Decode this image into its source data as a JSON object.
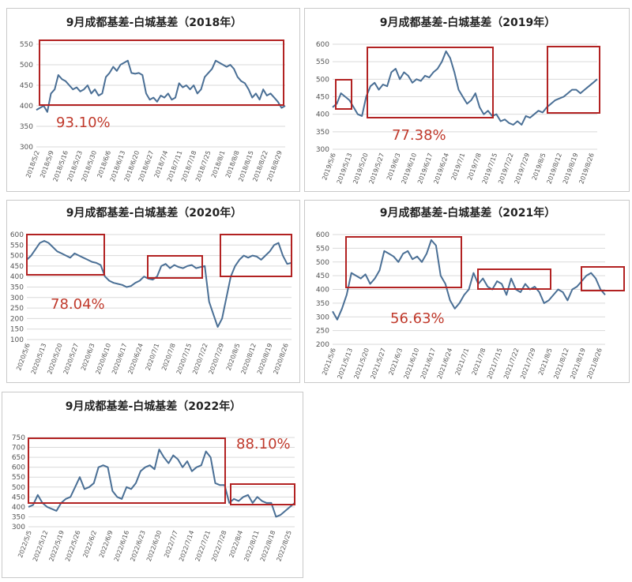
{
  "chart_data": [
    {
      "type": "line",
      "title": "9月成都基差-白城基差（2018年）",
      "ylim": [
        300,
        550
      ],
      "yticks": [
        300,
        350,
        400,
        450,
        500,
        550
      ],
      "x_labels": [
        "2018/5/2",
        "2018/5/9",
        "2018/5/16",
        "2018/5/23",
        "2018/5/30",
        "2018/6/6",
        "2018/6/13",
        "2018/6/20",
        "2018/6/27",
        "2018/7/4",
        "2018/7/11",
        "2018/7/18",
        "2018/7/25",
        "2018/8/1",
        "2018/8/8",
        "2018/8/15",
        "2018/8/22",
        "2018/8/29"
      ],
      "values": [
        390,
        395,
        400,
        385,
        430,
        440,
        475,
        465,
        460,
        450,
        440,
        445,
        435,
        440,
        450,
        430,
        440,
        425,
        430,
        470,
        480,
        495,
        485,
        500,
        505,
        510,
        480,
        478,
        480,
        475,
        430,
        415,
        420,
        410,
        425,
        420,
        430,
        415,
        420,
        455,
        445,
        450,
        440,
        450,
        430,
        440,
        470,
        480,
        490,
        510,
        505,
        500,
        495,
        500,
        490,
        470,
        460,
        455,
        440,
        420,
        430,
        415,
        440,
        425,
        430,
        420,
        410,
        395,
        400
      ],
      "grid": true,
      "annotations": [
        {
          "text": "93.10%"
        }
      ],
      "highlight_ranges": [
        [
          0.04,
          1.0
        ]
      ]
    },
    {
      "type": "line",
      "title": "9月成都基差-白城基差（2019年）",
      "ylim": [
        300,
        600
      ],
      "yticks": [
        300,
        350,
        400,
        450,
        500,
        550,
        600
      ],
      "x_labels": [
        "2019/5/6",
        "2019/5/13",
        "2019/5/20",
        "2019/5/27",
        "2019/6/3",
        "2019/6/10",
        "2019/6/17",
        "2019/6/24",
        "2019/7/1",
        "2019/7/8",
        "2019/7/15",
        "2019/7/22",
        "2019/7/29",
        "2019/8/5",
        "2019/8/12",
        "2019/8/19",
        "2019/8/26"
      ],
      "values": [
        420,
        430,
        460,
        450,
        440,
        420,
        400,
        395,
        450,
        480,
        490,
        470,
        485,
        480,
        520,
        530,
        500,
        520,
        510,
        490,
        500,
        495,
        510,
        505,
        520,
        530,
        550,
        580,
        560,
        520,
        470,
        450,
        430,
        440,
        460,
        420,
        400,
        410,
        395,
        400,
        380,
        385,
        375,
        370,
        380,
        370,
        395,
        390,
        400,
        410,
        405,
        420,
        430,
        440,
        445,
        450,
        460,
        470,
        470,
        460,
        470,
        480,
        490,
        500
      ],
      "grid": true,
      "annotations": [
        {
          "text": "77.38%"
        }
      ],
      "highlight_ranges": [
        [
          0.0,
          0.09
        ],
        [
          0.19,
          0.62
        ],
        [
          0.79,
          1.0
        ]
      ]
    },
    {
      "type": "line",
      "title": "9月成都基差-白城基差（2020年）",
      "ylim": [
        100,
        600
      ],
      "yticks": [
        100,
        150,
        200,
        250,
        300,
        350,
        400,
        450,
        500,
        550,
        600
      ],
      "x_labels": [
        "2020/5/6",
        "2020/5/13",
        "2020/5/20",
        "2020/5/27",
        "2020/6/3",
        "2020/6/10",
        "2020/6/17",
        "2020/6/24",
        "2020/7/1",
        "2020/7/8",
        "2020/7/15",
        "2020/7/22",
        "2020/7/29",
        "2020/8/5",
        "2020/8/12",
        "2020/8/19",
        "2020/8/26"
      ],
      "values": [
        480,
        500,
        530,
        560,
        570,
        560,
        540,
        520,
        510,
        500,
        490,
        510,
        500,
        490,
        480,
        470,
        465,
        455,
        400,
        380,
        370,
        365,
        360,
        350,
        355,
        370,
        380,
        400,
        390,
        385,
        400,
        450,
        460,
        440,
        455,
        445,
        440,
        450,
        455,
        440,
        445,
        450,
        280,
        220,
        160,
        200,
        300,
        400,
        450,
        480,
        500,
        490,
        500,
        495,
        480,
        500,
        520,
        550,
        560,
        500,
        460,
        465
      ],
      "grid": true,
      "annotations": [
        {
          "text": "78.04%"
        }
      ],
      "highlight_ranges": [
        [
          0.0,
          0.31
        ],
        [
          0.48,
          0.69
        ],
        [
          0.78,
          1.0
        ]
      ]
    },
    {
      "type": "line",
      "title": "9月成都基差-白城基差（2021年）",
      "ylim": [
        200,
        600
      ],
      "yticks": [
        200,
        250,
        300,
        350,
        400,
        450,
        500,
        550,
        600
      ],
      "x_labels": [
        "2021/5/6",
        "2021/5/13",
        "2021/5/20",
        "2021/5/27",
        "2021/6/3",
        "2021/6/10",
        "2021/6/17",
        "2021/6/24",
        "2021/7/1",
        "2021/7/8",
        "2021/7/15",
        "2021/7/22",
        "2021/7/29",
        "2021/8/5",
        "2021/8/12",
        "2021/8/19",
        "2021/8/26"
      ],
      "values": [
        320,
        290,
        330,
        380,
        460,
        450,
        440,
        455,
        420,
        440,
        470,
        540,
        530,
        520,
        500,
        530,
        540,
        510,
        520,
        500,
        530,
        580,
        560,
        450,
        420,
        360,
        330,
        350,
        380,
        400,
        460,
        420,
        440,
        410,
        400,
        430,
        420,
        380,
        440,
        400,
        390,
        420,
        400,
        410,
        390,
        350,
        360,
        380,
        400,
        390,
        360,
        400,
        410,
        430,
        450,
        460,
        440,
        400,
        380
      ],
      "grid": true,
      "annotations": [
        {
          "text": "56.63%"
        }
      ],
      "highlight_ranges": [
        [
          0.19,
          0.61
        ],
        [
          0.65,
          0.86
        ],
        [
          0.96,
          1.0
        ]
      ]
    },
    {
      "type": "line",
      "title": "9月成都基差-白城基差（2022年）",
      "ylim": [
        300,
        750
      ],
      "yticks": [
        300,
        350,
        400,
        450,
        500,
        550,
        600,
        650,
        700,
        750
      ],
      "x_labels": [
        "2022/5/5",
        "2022/5/12",
        "2022/5/19",
        "2022/5/26",
        "2022/6/2",
        "2022/6/9",
        "2022/6/16",
        "2022/6/23",
        "2022/6/30",
        "2022/7/7",
        "2022/7/14",
        "2022/7/21",
        "2022/7/28",
        "2022/8/4",
        "2022/8/11",
        "2022/8/18",
        "2022/8/25"
      ],
      "values": [
        400,
        410,
        460,
        420,
        400,
        390,
        380,
        420,
        440,
        450,
        500,
        550,
        490,
        500,
        520,
        600,
        610,
        600,
        480,
        450,
        440,
        500,
        490,
        520,
        580,
        600,
        610,
        590,
        690,
        650,
        620,
        660,
        640,
        600,
        630,
        580,
        600,
        610,
        680,
        650,
        520,
        510,
        510,
        420,
        440,
        430,
        450,
        460,
        420,
        450,
        430,
        420,
        420,
        350,
        360,
        380,
        400,
        420
      ],
      "grid": true,
      "annotations": [
        {
          "text": "88.10%"
        }
      ],
      "highlight_ranges": [
        [
          0.0,
          0.73
        ],
        [
          0.76,
          1.0
        ]
      ]
    }
  ],
  "colors": {
    "line": "#4a6f95",
    "box": "#b22222",
    "percent": "#c0392b"
  }
}
